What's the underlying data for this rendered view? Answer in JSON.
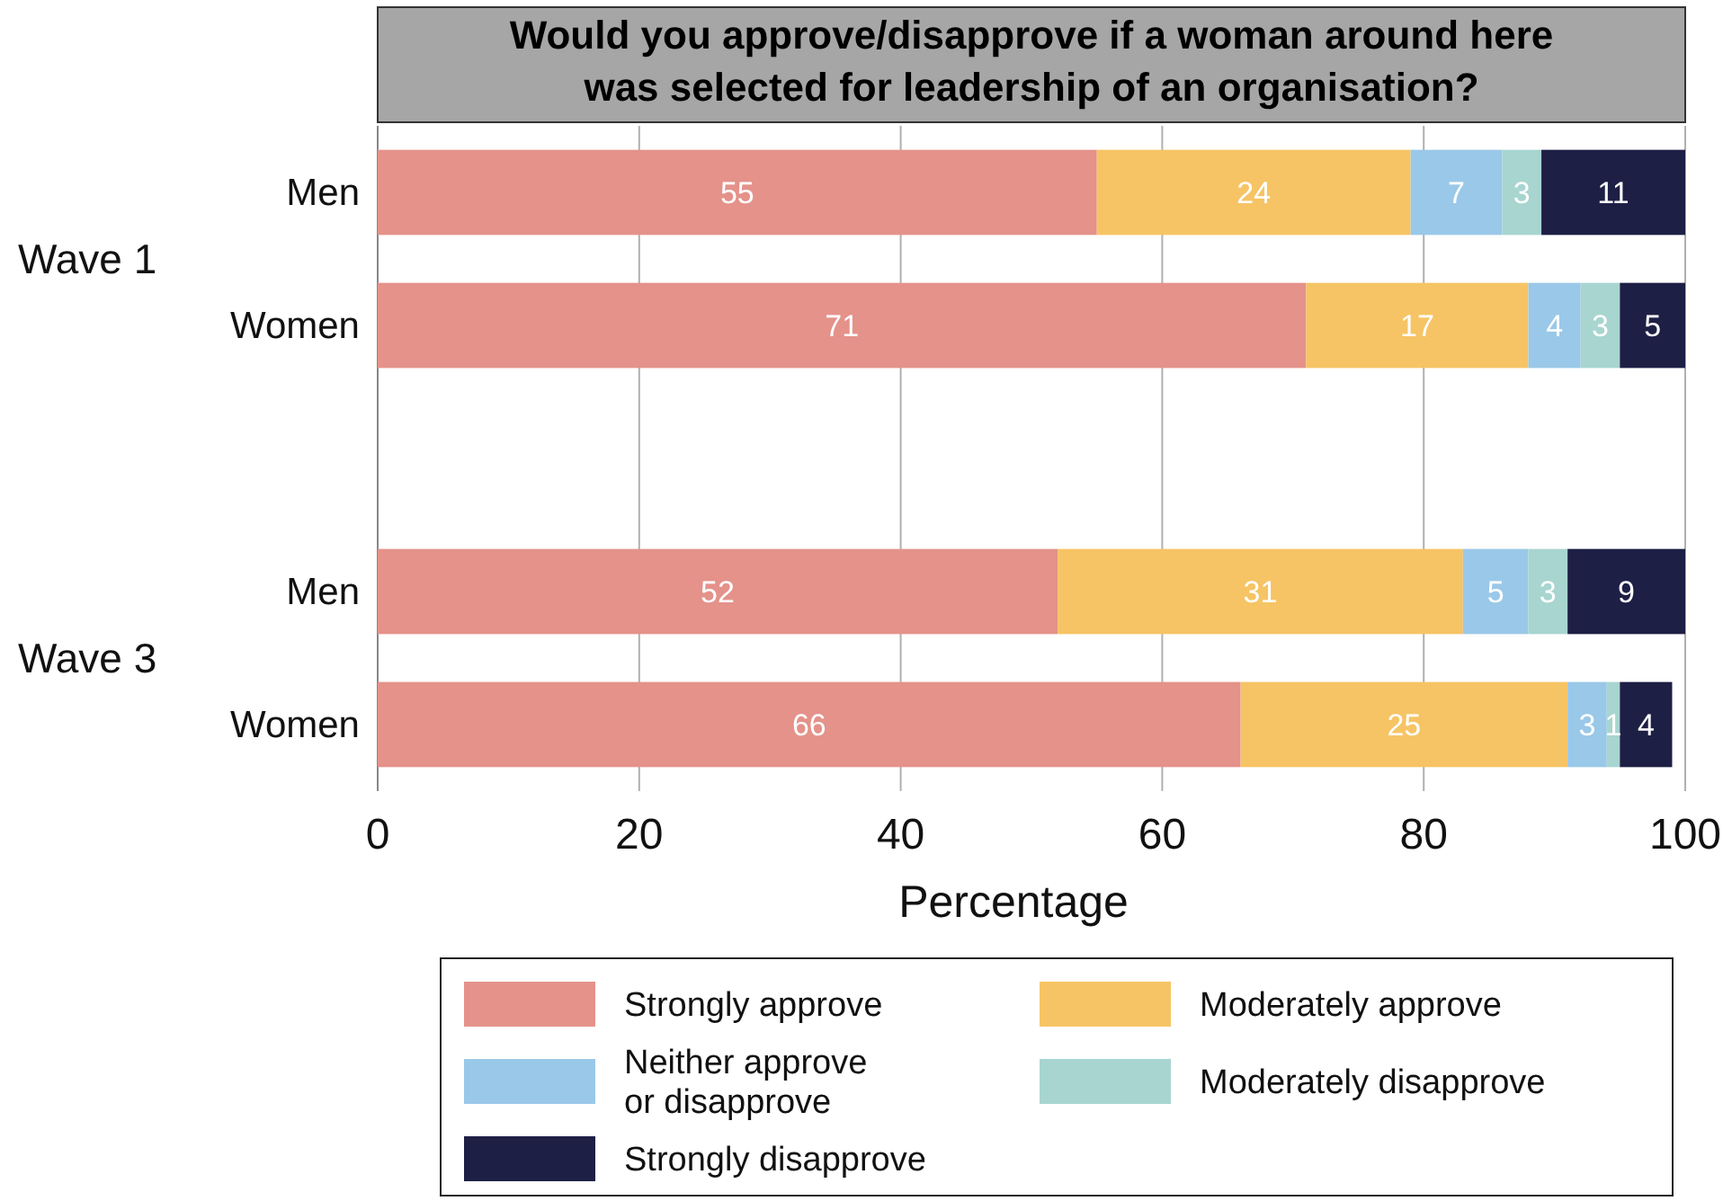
{
  "chart_data": {
    "type": "bar",
    "orientation": "horizontal",
    "stacked": true,
    "title": "Would you approve/disapprove if a woman around here was selected for leadership of an organisation?",
    "xlabel": "Percentage",
    "categories": [
      "Men",
      "Women",
      null,
      "Men",
      "Women"
    ],
    "series": [
      {
        "name": "Strongly approve",
        "color": "#e4928a",
        "values": [
          55,
          71,
          null,
          52,
          66
        ]
      },
      {
        "name": "Moderately approve",
        "color": "#f6c465",
        "values": [
          24,
          17,
          null,
          31,
          25
        ]
      },
      {
        "name": "Neither approve or disapprove",
        "color": "#9ac8e8",
        "values": [
          7,
          4,
          null,
          5,
          3
        ]
      },
      {
        "name": "Moderately disapprove",
        "color": "#a8d5d0",
        "values": [
          3,
          3,
          null,
          3,
          1
        ]
      },
      {
        "name": "Strongly disapprove",
        "color": "#1e1f45",
        "values": [
          11,
          5,
          null,
          9,
          4
        ]
      }
    ],
    "annotations": [
      "Wave 1",
      "Wave 3"
    ],
    "xlim": [
      0,
      100
    ],
    "xticks": [
      0,
      20,
      40,
      60,
      80,
      100
    ],
    "grid": "x",
    "data_labels": true,
    "legend": "bottom"
  }
}
